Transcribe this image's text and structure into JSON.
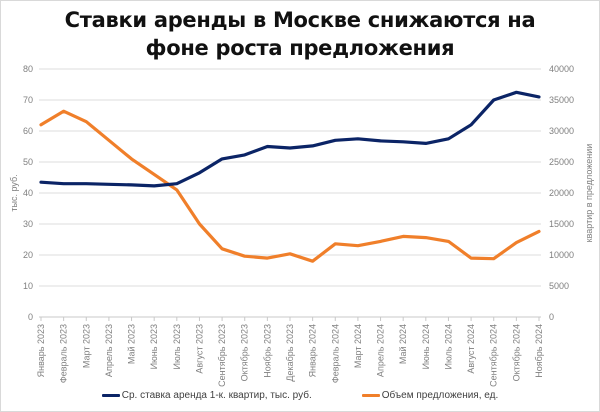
{
  "title_line1": "Ставки аренды в Москве снижаются на",
  "title_line2": "фоне роста предложения",
  "colors": {
    "rate": "#0b2466",
    "supply": "#f07f2a",
    "grid": "#dcdcdc",
    "text": "#808080"
  },
  "chart_data": {
    "type": "line",
    "title": "Ставки аренды в Москве снижаются на фоне роста предложения",
    "xlabel": "",
    "ylabel": "тыс. руб.",
    "ylabel_right": "квартир в предложении",
    "ylim": [
      0,
      80
    ],
    "ylim_right": [
      0,
      40000
    ],
    "yticks": [
      0,
      10,
      20,
      30,
      40,
      50,
      60,
      70,
      80
    ],
    "yticks_right": [
      0,
      5000,
      10000,
      15000,
      20000,
      25000,
      30000,
      35000,
      40000
    ],
    "grid": true,
    "legend_position": "bottom",
    "categories": [
      "Январь 2023",
      "Февраль 2023",
      "Март 2023",
      "Апрель 2023",
      "Май 2023",
      "Июнь 2023",
      "Июль 2023",
      "Август 2023",
      "Сентябрь 2023",
      "Октябрь 2023",
      "Ноябрь 2023",
      "Декабрь 2023",
      "Январь 2024",
      "Февраль 2024",
      "Март 2024",
      "Апрель 2024",
      "Май 2024",
      "Июнь 2024",
      "Июль 2024",
      "Август 2024",
      "Сентябрь 2024",
      "Октябрь 2024",
      "Ноябрь 2024"
    ],
    "series": [
      {
        "name": "Ср. ставка аренда 1-к. квартир, тыс. руб.",
        "axis": "left",
        "values": [
          43.5,
          43.0,
          43.0,
          42.8,
          42.6,
          42.3,
          43.0,
          46.5,
          51.0,
          52.3,
          55.0,
          54.5,
          55.2,
          57.0,
          57.5,
          56.8,
          56.5,
          56.0,
          57.5,
          62.0,
          70.0,
          72.5,
          71.0
        ]
      },
      {
        "name": "Объем предложения, ед.",
        "axis": "right",
        "values": [
          31000,
          33200,
          31500,
          28500,
          25500,
          23000,
          20500,
          15000,
          11000,
          9800,
          9500,
          10200,
          9000,
          11800,
          11500,
          12200,
          13000,
          12800,
          12200,
          9500,
          9400,
          12000,
          13800
        ]
      }
    ]
  },
  "legend": {
    "rate_label": "Ср. ставка аренда 1-к. квартир, тыс. руб.",
    "supply_label": "Объем предложения, ед."
  },
  "axis": {
    "left_title": "тыс. руб.",
    "right_title": "квартир в предложении"
  }
}
